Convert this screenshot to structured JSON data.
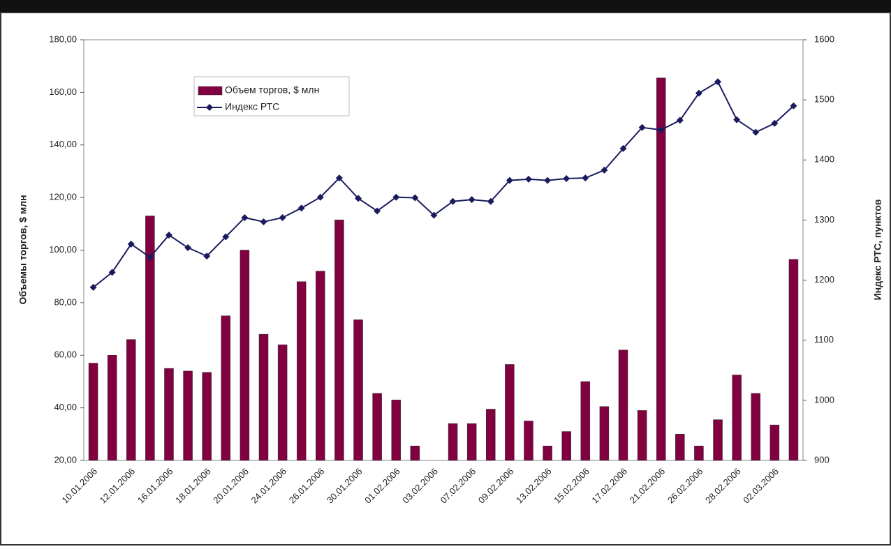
{
  "chart_data": {
    "type": "bar_line",
    "y_axis_label": "Объемы торгов, $ млн",
    "y2_axis_label": "Индекс РТС, пунктов",
    "categories": [
      "10.01.2006",
      null,
      "12.01.2006",
      null,
      "16.01.2006",
      null,
      "18.01.2006",
      null,
      "20.01.2006",
      null,
      "24.01.2006",
      null,
      "26.01.2006",
      null,
      "30.01.2006",
      null,
      "01.02.2006",
      null,
      "03.02.2006",
      null,
      "07.02.2006",
      null,
      "09.02.2006",
      null,
      "13.02.2006",
      null,
      "15.02.2006",
      null,
      "17.02.2006",
      null,
      "21.02.2006",
      null,
      "26.02.2006",
      null,
      "28.02.2006",
      null,
      "02.03.2006",
      null
    ],
    "series": [
      {
        "name": "Объем торгов, $ млн",
        "color": "#800040",
        "values": [
          57,
          60,
          66,
          113,
          55,
          54,
          53.5,
          75,
          100,
          68,
          64,
          88,
          92,
          111.5,
          73.5,
          45.5,
          43,
          25.5,
          null,
          34,
          34,
          39.5,
          56.5,
          35,
          25.5,
          31,
          50,
          40.5,
          62,
          39,
          165.5,
          30,
          25.5,
          35.5,
          52.5,
          45.5,
          33.5,
          96.5
        ]
      },
      {
        "name": "Индекс РТС",
        "color": "#1a1a5e",
        "axis": "y2",
        "values": [
          1188,
          1213,
          1260,
          1238,
          1275,
          1254,
          1240,
          1272,
          1304,
          1297,
          1304,
          1320,
          1338,
          1370,
          1336,
          1315,
          1338,
          1337,
          1308,
          1331,
          1334,
          1331,
          1366,
          1368,
          1366,
          1369,
          1370,
          1383,
          1419,
          1454,
          1450,
          1466,
          1511,
          1530,
          1467,
          1446,
          1461,
          1490
        ]
      }
    ],
    "ylim": [
      20,
      180
    ],
    "yticks": [
      {
        "value": 20,
        "label": "20,00"
      },
      {
        "value": 40,
        "label": "40,00"
      },
      {
        "value": 60,
        "label": "60,00"
      },
      {
        "value": 80,
        "label": "80,00"
      },
      {
        "value": 100,
        "label": "100,00"
      },
      {
        "value": 120,
        "label": "120,00"
      },
      {
        "value": 140,
        "label": "140,00"
      },
      {
        "value": 160,
        "label": "160,00"
      },
      {
        "value": 180,
        "label": "180,00"
      }
    ],
    "y2lim": [
      900,
      1600
    ],
    "y2ticks": [
      900,
      1000,
      1100,
      1200,
      1300,
      1400,
      1500,
      1600
    ],
    "legend": "upper-left"
  }
}
